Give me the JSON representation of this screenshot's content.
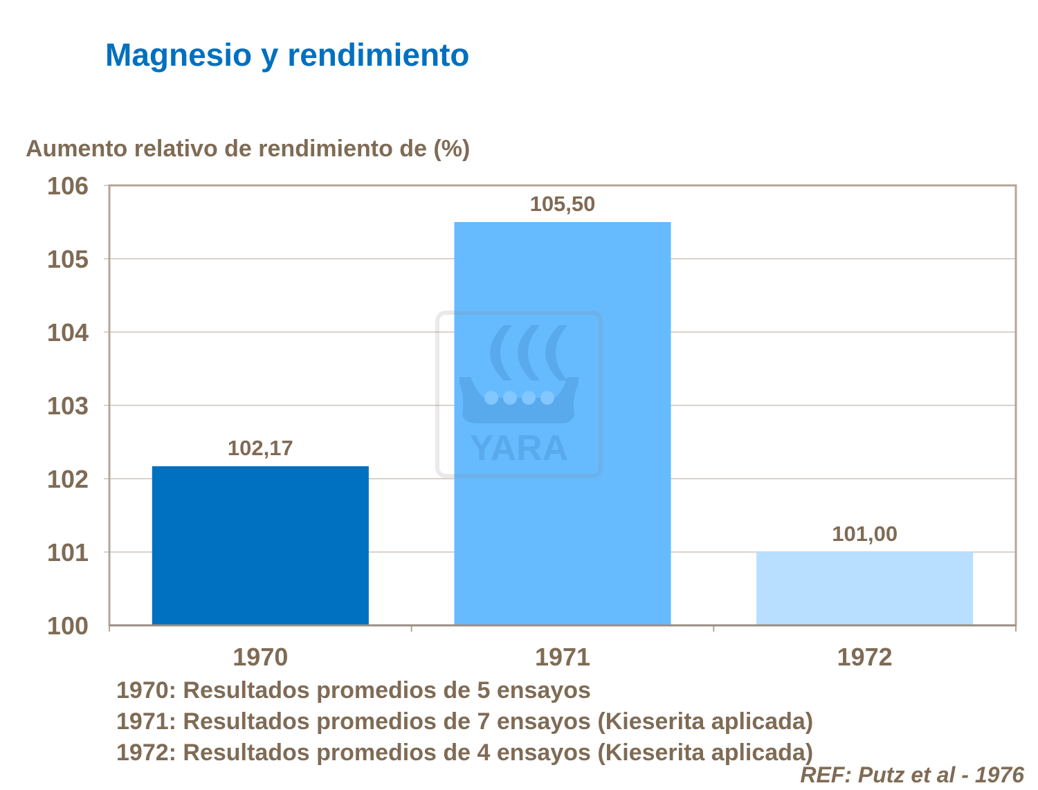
{
  "chart_data": {
    "type": "bar",
    "title": "Magnesio y rendimiento",
    "ylabel": "Aumento relativo de rendimiento de (%)",
    "xlabel": "",
    "categories": [
      "1970",
      "1971",
      "1972"
    ],
    "values": [
      102.17,
      105.5,
      101.0
    ],
    "data_labels": [
      "102,17",
      "105,50",
      "101,00"
    ],
    "bar_colors": [
      "#0070c0",
      "#66bbff",
      "#b8dfff"
    ],
    "ylim": [
      100,
      106
    ],
    "yticks": [
      100,
      101,
      102,
      103,
      104,
      105,
      106
    ],
    "grid": true,
    "legend": "none"
  },
  "notes": [
    "1970: Resultados promedios de 5 ensayos",
    "1971: Resultados promedios de 7 ensayos (Kieserita aplicada)",
    "1972: Resultados promedios de 4 ensayos (Kieserita aplicada)"
  ],
  "reference": "REF: Putz et al - 1976",
  "watermark": {
    "logo_text": "YARA",
    "icon": "viking-ship-logo"
  },
  "colors": {
    "title": "#0070c0",
    "text": "#7f6b55",
    "axis": "#b3a698"
  }
}
